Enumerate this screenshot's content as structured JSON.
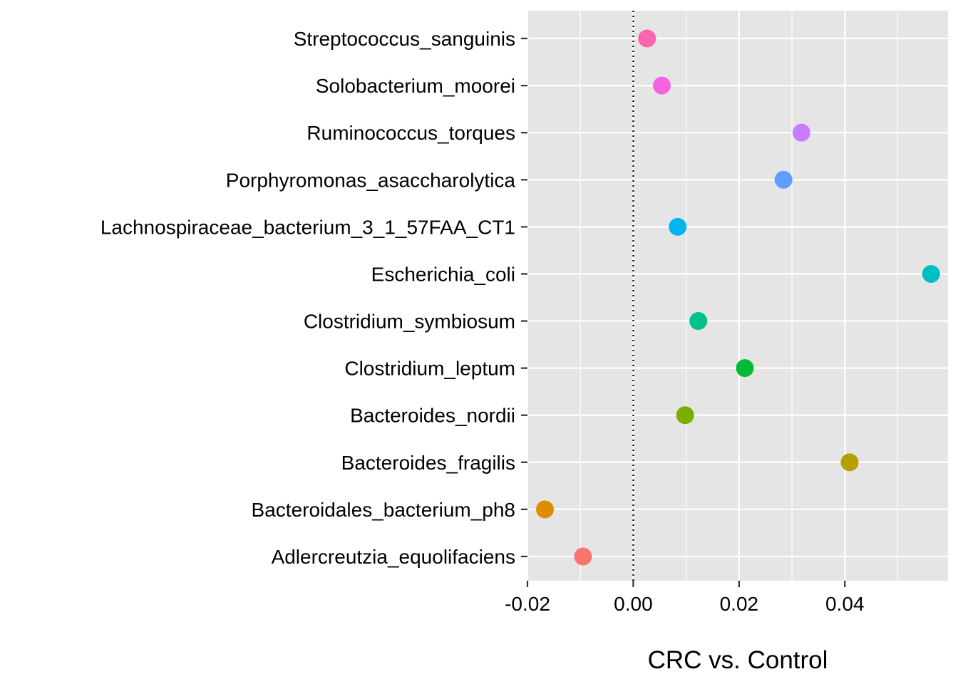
{
  "chart_data": {
    "type": "scatter",
    "title": "",
    "xlabel": "CRC vs. Control",
    "ylabel": "",
    "xlim": [
      -0.02,
      0.0595
    ],
    "x_ticks": [
      -0.02,
      0.0,
      0.02,
      0.04
    ],
    "x_tick_labels": [
      "-0.02",
      "0.00",
      "0.02",
      "0.04"
    ],
    "reference_line": {
      "x": 0,
      "style": "dotted",
      "color": "#000000"
    },
    "grid": true,
    "panel_background": "#e5e5e5",
    "points": [
      {
        "label": "Adlercreutzia_equolifaciens",
        "value": -0.0095,
        "color": "#F8766D"
      },
      {
        "label": "Bacteroidales_bacterium_ph8",
        "value": -0.0167,
        "color": "#DE8C00"
      },
      {
        "label": "Bacteroides_fragilis",
        "value": 0.0409,
        "color": "#B79F00"
      },
      {
        "label": "Bacteroides_nordii",
        "value": 0.0098,
        "color": "#7CAE00"
      },
      {
        "label": "Clostridium_leptum",
        "value": 0.0211,
        "color": "#00BA38"
      },
      {
        "label": "Clostridium_symbiosum",
        "value": 0.0123,
        "color": "#00C08B"
      },
      {
        "label": "Escherichia_coli",
        "value": 0.0563,
        "color": "#00BFC4"
      },
      {
        "label": "Lachnospiraceae_bacterium_3_1_57FAA_CT1",
        "value": 0.0084,
        "color": "#00B4F0"
      },
      {
        "label": "Porphyromonas_asaccharolytica",
        "value": 0.0284,
        "color": "#619CFF"
      },
      {
        "label": "Ruminococcus_torques",
        "value": 0.0318,
        "color": "#C77CFF"
      },
      {
        "label": "Solobacterium_moorei",
        "value": 0.0054,
        "color": "#F564E3"
      },
      {
        "label": "Streptococcus_sanguinis",
        "value": 0.0026,
        "color": "#FF64B0"
      }
    ]
  }
}
